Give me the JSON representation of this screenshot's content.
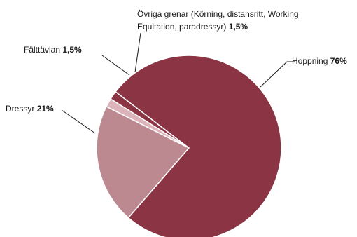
{
  "chart_data": {
    "type": "pie",
    "title": "",
    "slices": [
      {
        "label": "Hoppning",
        "value": 76,
        "value_text": "76%",
        "color": "#8b3444"
      },
      {
        "label": "Dressyr",
        "value": 21,
        "value_text": "21%",
        "color": "#bc8990"
      },
      {
        "label": "Fälttävlan",
        "value": 1.5,
        "value_text": "1,5%",
        "color": "#dbb5ba"
      },
      {
        "label": "Övriga grenar (Körning, distansritt, Working Equitation, paradressyr)",
        "label_line1": "Övriga grenar (Körning, distansritt, Working",
        "label_line2": "Equitation, paradressyr)",
        "value": 1.5,
        "value_text": "1,5%",
        "color": "#8b3444"
      }
    ]
  }
}
